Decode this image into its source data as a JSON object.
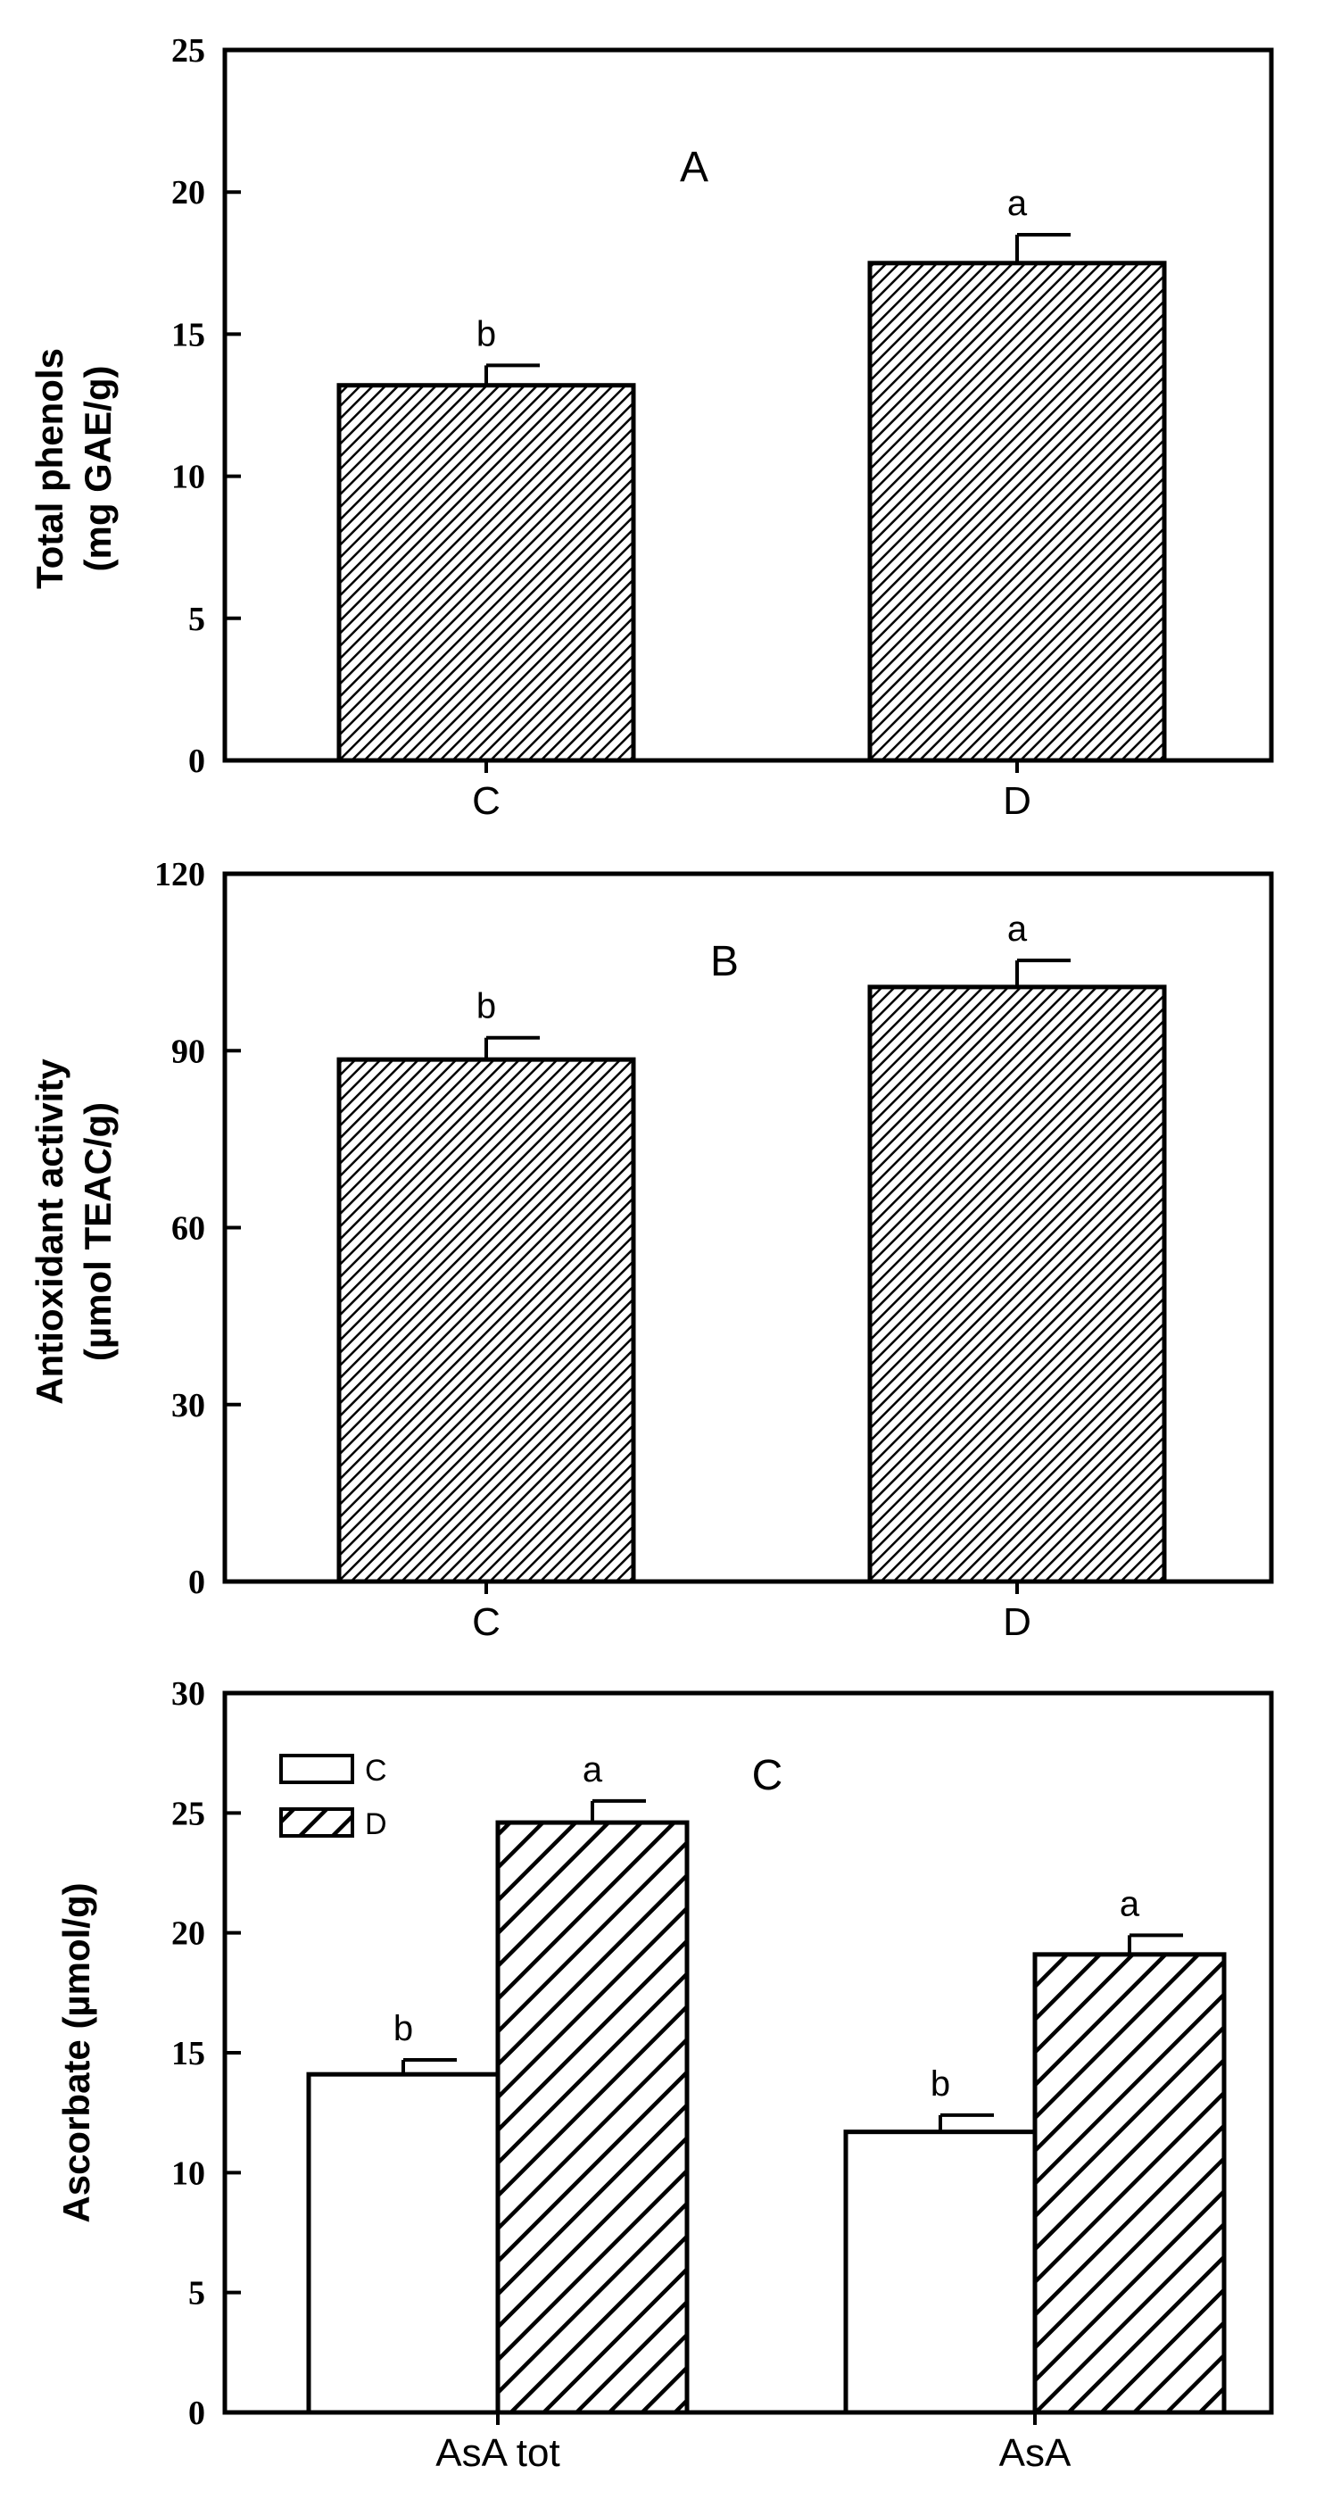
{
  "chart_data": [
    {
      "type": "bar",
      "panel_letter": "A",
      "ylabel_lines": [
        "Total phenols",
        "(mg GAE/g)"
      ],
      "ylim": [
        0,
        25
      ],
      "yticks": [
        0,
        5,
        10,
        15,
        20,
        25
      ],
      "categories": [
        "C",
        "D"
      ],
      "series": [
        {
          "values": [
            13.2,
            17.5
          ],
          "errors": [
            0.7,
            1.0
          ],
          "sig": [
            "b",
            "a"
          ],
          "pattern": "fine-hatch"
        }
      ]
    },
    {
      "type": "bar",
      "panel_letter": "B",
      "ylabel_lines": [
        "Antioxidant activity",
        "(µmol TEAC/g)"
      ],
      "ylim": [
        0,
        120
      ],
      "yticks": [
        0,
        30,
        60,
        90,
        120
      ],
      "categories": [
        "C",
        "D"
      ],
      "series": [
        {
          "values": [
            88.5,
            100.8
          ],
          "errors": [
            3.7,
            4.5
          ],
          "sig": [
            "b",
            "a"
          ],
          "pattern": "fine-hatch"
        }
      ]
    },
    {
      "type": "bar",
      "panel_letter": "C",
      "ylabel_lines": [
        "Ascorbate (µmol/g)"
      ],
      "ylim": [
        0,
        30
      ],
      "yticks": [
        0,
        5,
        10,
        15,
        20,
        25,
        30
      ],
      "categories": [
        "AsA tot",
        "AsA"
      ],
      "legend_position": "top-left",
      "series": [
        {
          "name": "C",
          "values": [
            14.1,
            11.7
          ],
          "errors": [
            0.6,
            0.7
          ],
          "sig": [
            "b",
            "b"
          ],
          "pattern": "none"
        },
        {
          "name": "D",
          "values": [
            24.6,
            19.1
          ],
          "errors": [
            0.9,
            0.8
          ],
          "sig": [
            "a",
            "a"
          ],
          "pattern": "coarse-hatch"
        }
      ]
    }
  ]
}
